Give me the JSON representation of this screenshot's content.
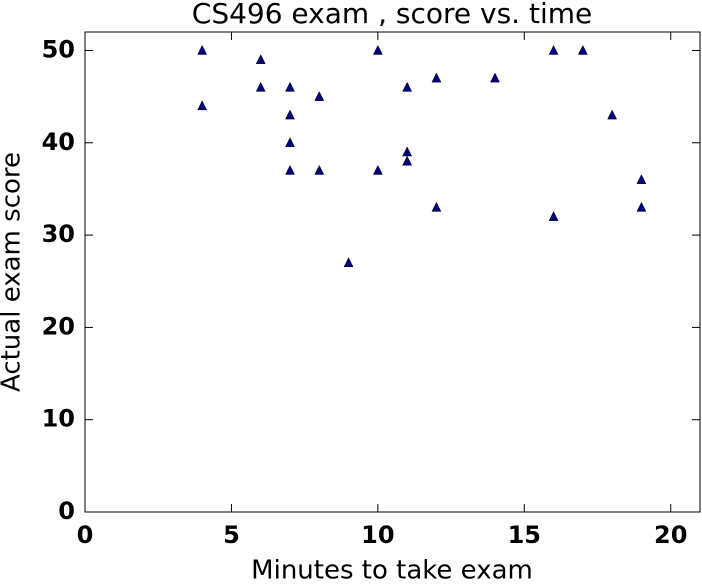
{
  "chart_data": {
    "type": "scatter",
    "title": "CS496 exam , score vs. time",
    "x_label": "Minutes to take exam",
    "y_label": "Actual exam score",
    "series": [
      {
        "color": "#000080",
        "x": [
          4,
          4,
          6,
          6,
          7,
          7,
          7,
          7,
          8,
          8,
          9,
          10,
          10,
          11,
          11,
          11,
          12,
          12,
          14,
          16,
          16,
          17,
          18,
          19,
          19
        ],
        "values": [
          50,
          44,
          49,
          46,
          46,
          43,
          40,
          37,
          45,
          37,
          27,
          50,
          37,
          46,
          39,
          38,
          47,
          33,
          47,
          50,
          32,
          50,
          43,
          36,
          33
        ]
      }
    ],
    "xlim": [
      0,
      21
    ],
    "xticks": [
      0,
      5,
      10,
      15,
      20
    ],
    "ylim": [
      0,
      52
    ],
    "yticks": [
      0,
      10,
      20,
      30,
      40,
      50
    ]
  }
}
